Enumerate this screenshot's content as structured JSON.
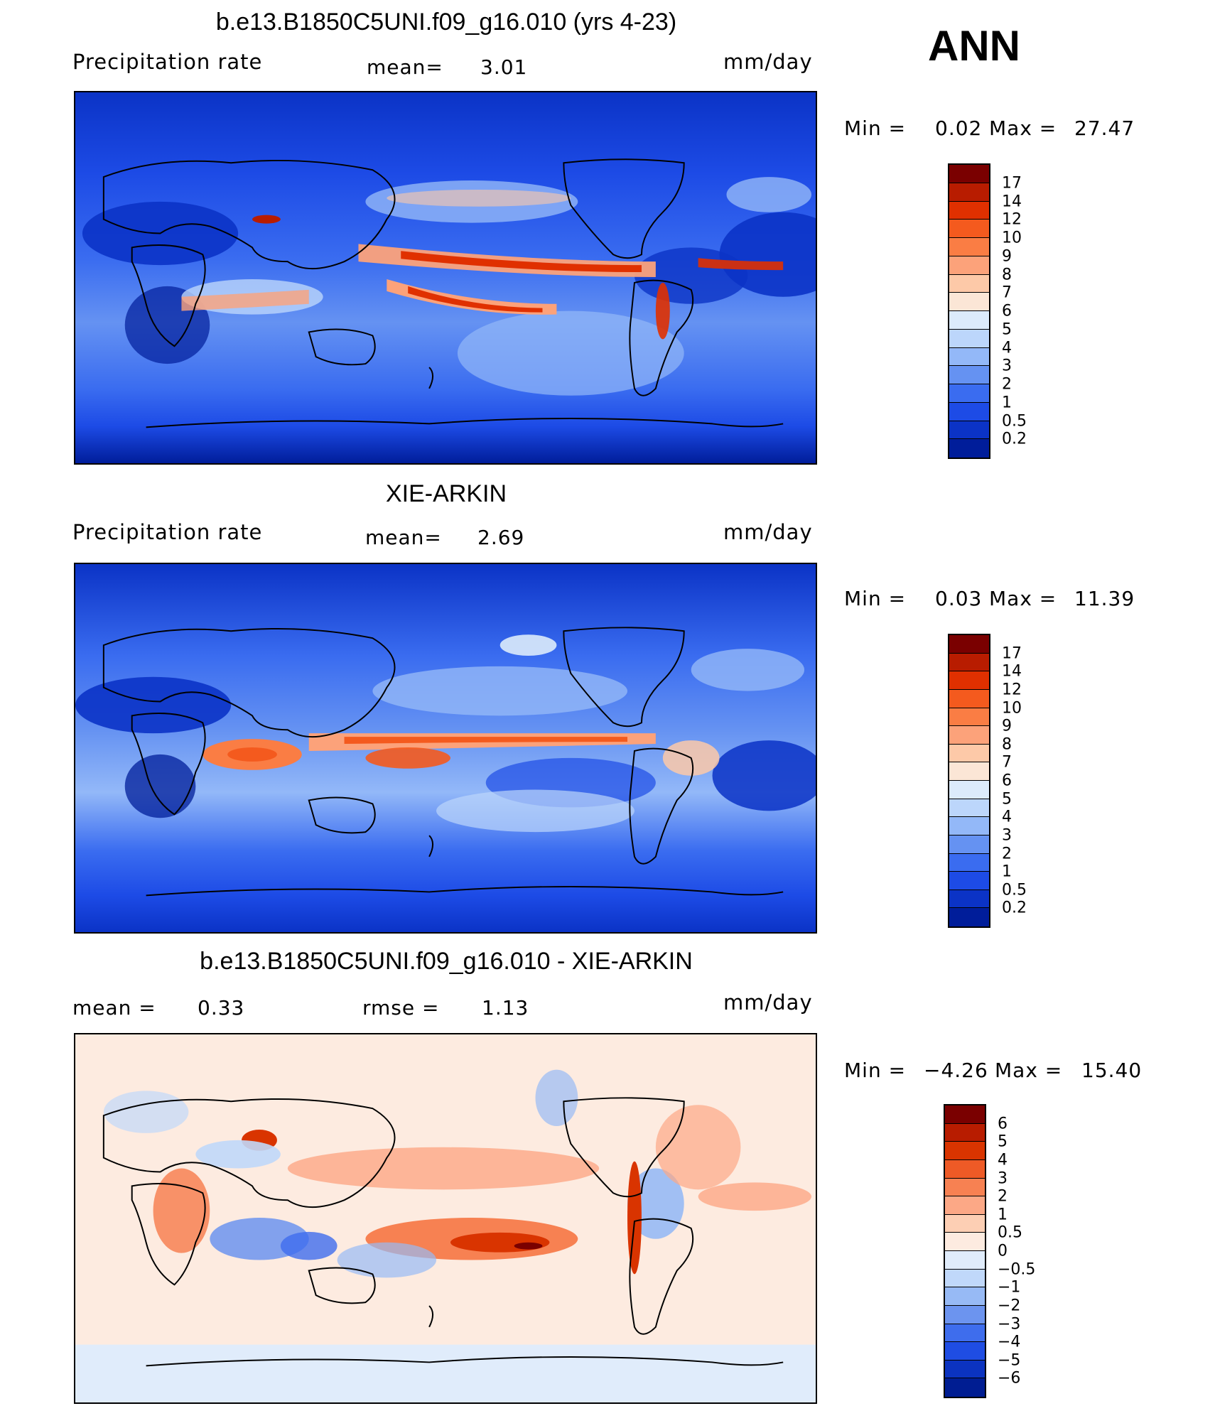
{
  "season": "ANN",
  "panels": [
    {
      "title": "b.e13.B1850C5UNI.f09_g16.010 (yrs 4-23)",
      "field": "Precipitation  rate",
      "stat1": "mean=",
      "stat1_value": "3.01",
      "units": "mm/day",
      "min_label": "Min  =",
      "min_value": "0.02",
      "max_label": "Max  =",
      "max_value": "27.47"
    },
    {
      "title": "XIE-ARKIN",
      "field": "Precipitation  rate",
      "stat1": "mean=",
      "stat1_value": "2.69",
      "units": "mm/day",
      "min_label": "Min  =",
      "min_value": "0.03",
      "max_label": "Max  =",
      "max_value": "11.39"
    },
    {
      "title": "b.e13.B1850C5UNI.f09_g16.010 - XIE-ARKIN",
      "stat0": "mean  =",
      "stat0_value": "0.33",
      "stat1": "rmse  =",
      "stat1_value": "1.13",
      "units": "mm/day",
      "min_label": "Min  =",
      "min_value": "−4.26",
      "max_label": "Max  =",
      "max_value": "15.40"
    }
  ],
  "colorbars": {
    "precip": {
      "levels": [
        "17",
        "14",
        "12",
        "10",
        "9",
        "8",
        "7",
        "6",
        "5",
        "4",
        "3",
        "2",
        "1",
        "0.5",
        "0.2"
      ],
      "colors": [
        "#7a0000",
        "#b81c00",
        "#e03000",
        "#f45a1e",
        "#fa7d44",
        "#fca27a",
        "#fdc9a8",
        "#fbe6d6",
        "#dcebfb",
        "#bcd6fb",
        "#93b8f8",
        "#6592f2",
        "#3a6cf0",
        "#1d4be6",
        "#0b33c6",
        "#001d9a"
      ]
    },
    "diff": {
      "levels": [
        "6",
        "5",
        "4",
        "3",
        "2",
        "1",
        "0.5",
        "0",
        "−0.5",
        "−1",
        "−2",
        "−3",
        "−4",
        "−5",
        "−6"
      ],
      "colors": [
        "#7a0000",
        "#b81c00",
        "#d93400",
        "#ee5a26",
        "#f78152",
        "#fca886",
        "#fdcfb4",
        "#fdebe0",
        "#e0ecfb",
        "#c0d8fa",
        "#97baf5",
        "#6c94ef",
        "#3e6ded",
        "#1f4de3",
        "#0b33c0",
        "#001d92"
      ]
    }
  },
  "map_colors": {
    "ocean_low": "#0b33c6",
    "band_high": "#e8461a",
    "diff_base": "#fbe0cf"
  }
}
